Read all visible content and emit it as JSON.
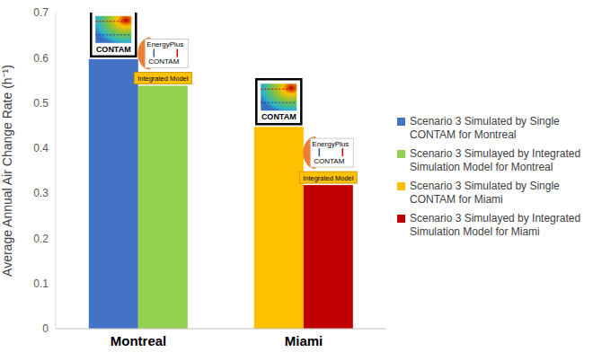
{
  "chart_data": {
    "type": "bar",
    "categories": [
      "Montreal",
      "Miami"
    ],
    "series": [
      {
        "name": "Scenario 3 Simulated by Single CONTAM for Montreal",
        "color": "#4472c4",
        "values": [
          0.597,
          null
        ],
        "annotations": [
          "CONTAM"
        ]
      },
      {
        "name": "Scenario 3 Simulayed by Integrated Simulation Model for Montreal",
        "color": "#92d050",
        "values": [
          0.538,
          null
        ],
        "annotations": [
          "EnergyPlus",
          "CONTAM",
          "Integrated Model"
        ]
      },
      {
        "name": "Scenario 3 Simulated by Single CONTAM for Miami",
        "color": "#ffc000",
        "values": [
          null,
          0.447
        ],
        "annotations": [
          "CONTAM"
        ]
      },
      {
        "name": "Scenario 3 Simulayed by Integrated Simulation Model for Miami",
        "color": "#c00000",
        "values": [
          null,
          0.318
        ],
        "annotations": [
          "EnergyPlus",
          "CONTAM",
          "Integrated Model"
        ]
      }
    ],
    "y_label": "Average Annual Air Change Rate (h⁻¹)",
    "ylim": [
      0,
      0.7
    ],
    "yticks": [
      0,
      0.1,
      0.2,
      0.3,
      0.4,
      0.5,
      0.6,
      0.7
    ],
    "grid": false,
    "legend": "right"
  }
}
